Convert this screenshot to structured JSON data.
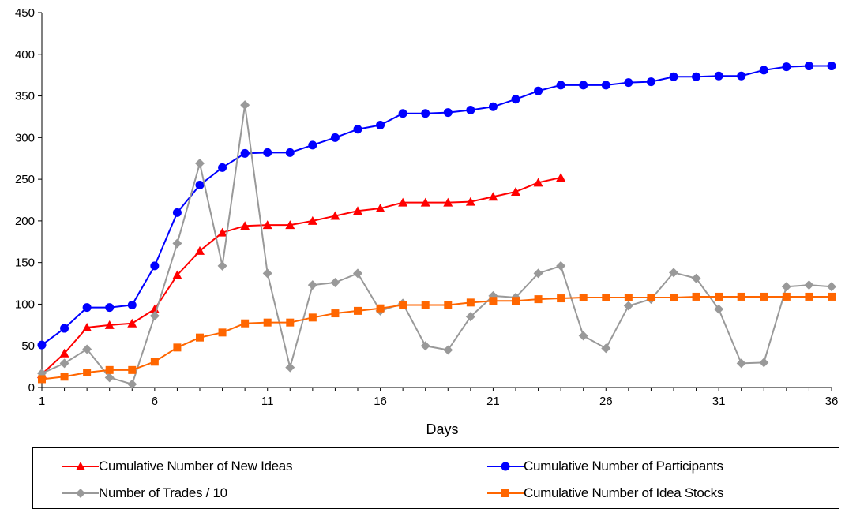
{
  "chart_data": {
    "type": "line",
    "title": "",
    "xlabel": "Days",
    "ylabel": "",
    "xlim": [
      1,
      36
    ],
    "ylim": [
      0,
      450
    ],
    "xticks": [
      1,
      6,
      11,
      16,
      21,
      26,
      31,
      36
    ],
    "yticks": [
      0,
      50,
      100,
      150,
      200,
      250,
      300,
      350,
      400,
      450
    ],
    "grid": false,
    "legend_position": "bottom",
    "series": [
      {
        "name": "Cumulative Number of New Ideas",
        "color": "#ff0000",
        "marker": "triangle",
        "x": [
          1,
          2,
          3,
          4,
          5,
          6,
          7,
          8,
          9,
          10,
          11,
          12,
          13,
          14,
          15,
          16,
          17,
          18,
          19,
          20,
          21,
          22,
          23,
          24
        ],
        "values": [
          16,
          41,
          72,
          75,
          77,
          94,
          135,
          164,
          186,
          194,
          195,
          195,
          200,
          206,
          212,
          215,
          222,
          222,
          222,
          223,
          229,
          235,
          246,
          252
        ]
      },
      {
        "name": "Cumulative Number of Participants",
        "color": "#0000ff",
        "marker": "circle",
        "x": [
          1,
          2,
          3,
          4,
          5,
          6,
          7,
          8,
          9,
          10,
          11,
          12,
          13,
          14,
          15,
          16,
          17,
          18,
          19,
          20,
          21,
          22,
          23,
          24,
          25,
          26,
          27,
          28,
          29,
          30,
          31,
          32,
          33,
          34,
          35,
          36
        ],
        "values": [
          51,
          71,
          96,
          96,
          99,
          146,
          210,
          243,
          264,
          281,
          282,
          282,
          291,
          300,
          310,
          315,
          329,
          329,
          330,
          333,
          337,
          346,
          356,
          363,
          363,
          363,
          366,
          367,
          373,
          373,
          374,
          374,
          381,
          385,
          386,
          386
        ]
      },
      {
        "name": "Number of Trades / 10",
        "color": "#999999",
        "marker": "diamond",
        "x": [
          1,
          2,
          3,
          4,
          5,
          6,
          7,
          8,
          9,
          10,
          11,
          12,
          13,
          14,
          15,
          16,
          17,
          18,
          19,
          20,
          21,
          22,
          23,
          24,
          25,
          26,
          27,
          28,
          29,
          30,
          31,
          32,
          33,
          34,
          35,
          36
        ],
        "values": [
          17,
          29,
          46,
          12,
          4,
          86,
          173,
          269,
          146,
          339,
          137,
          24,
          123,
          126,
          137,
          92,
          101,
          50,
          45,
          85,
          110,
          108,
          137,
          146,
          62,
          47,
          98,
          106,
          138,
          131,
          94,
          29,
          30,
          121,
          123,
          121
        ]
      },
      {
        "name": "Cumulative Number of Idea Stocks",
        "color": "#ff6600",
        "marker": "square",
        "x": [
          1,
          2,
          3,
          4,
          5,
          6,
          7,
          8,
          9,
          10,
          11,
          12,
          13,
          14,
          15,
          16,
          17,
          18,
          19,
          20,
          21,
          22,
          23,
          24,
          25,
          26,
          27,
          28,
          29,
          30,
          31,
          32,
          33,
          34,
          35,
          36
        ],
        "values": [
          10,
          13,
          18,
          21,
          21,
          31,
          48,
          60,
          66,
          77,
          78,
          78,
          84,
          89,
          92,
          95,
          99,
          99,
          99,
          102,
          104,
          104,
          106,
          107,
          108,
          108,
          108,
          108,
          108,
          109,
          109,
          109,
          109,
          109,
          109,
          109
        ]
      }
    ]
  }
}
